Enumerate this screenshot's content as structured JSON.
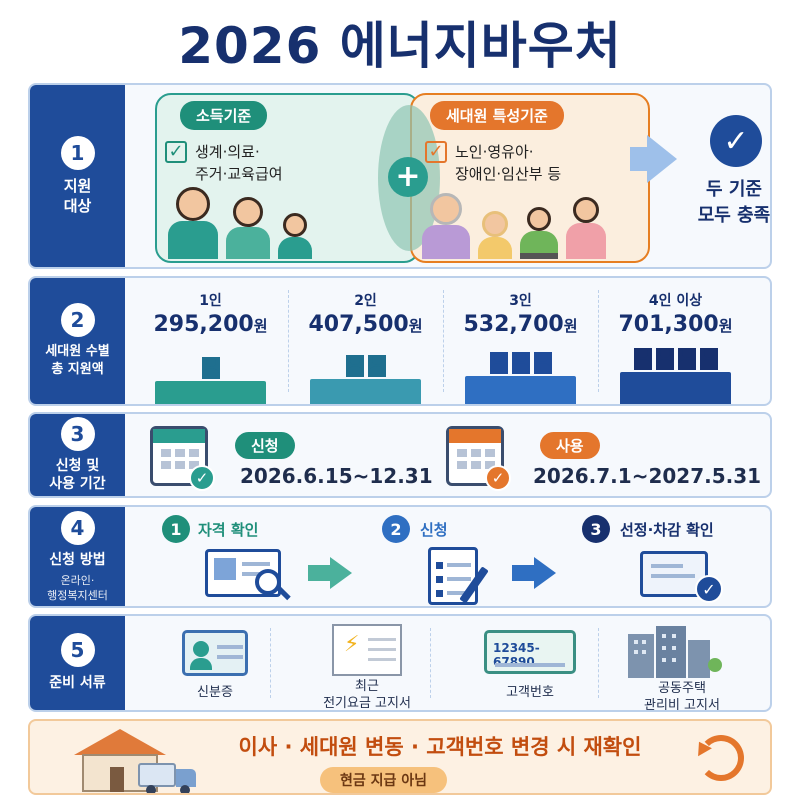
{
  "title": "2026 에너지바우처",
  "colors": {
    "primary": "#1f4c9a",
    "teal": "#1f8f7a",
    "orange": "#e4762c",
    "accent_text": "#c24d0f"
  },
  "eligibility": {
    "number": "1",
    "label_line1": "지원",
    "label_line2": "대상",
    "income": {
      "title": "소득기준",
      "line1": "생계·의료·",
      "line2": "주거·교육급여",
      "icon": "check-icon"
    },
    "household": {
      "title": "세대원 특성기준",
      "line1": "노인·영유아·",
      "line2": "장애인·임산부 등",
      "icon": "check-icon"
    },
    "plus": "+",
    "result_line1": "두 기준",
    "result_line2": "모두 충족"
  },
  "amounts": {
    "number": "2",
    "label_line1": "세대원 수별",
    "label_line2": "총 지원액",
    "unit": "원",
    "tiers": [
      {
        "size": "1인",
        "amount": "295,200",
        "people": 1,
        "value": 295200
      },
      {
        "size": "2인",
        "amount": "407,500",
        "people": 2,
        "value": 407500
      },
      {
        "size": "3인",
        "amount": "532,700",
        "people": 3,
        "value": 532700
      },
      {
        "size": "4인 이상",
        "amount": "701,300",
        "people": 4,
        "value": 701300
      }
    ]
  },
  "period": {
    "number": "3",
    "label_line1": "신청 및",
    "label_line2": "사용 기간",
    "apply": {
      "label": "신청",
      "dates": "2026.6.15~12.31"
    },
    "use": {
      "label": "사용",
      "dates": "2026.7.1~2027.5.31"
    }
  },
  "method": {
    "number": "4",
    "label": "신청 방법",
    "sub_line1": "온라인·",
    "sub_line2": "행정복지센터",
    "steps": [
      {
        "num": "1",
        "label": "자격 확인",
        "icon": "monitor-search-icon"
      },
      {
        "num": "2",
        "label": "신청",
        "icon": "clipboard-pen-icon"
      },
      {
        "num": "3",
        "label": "선정·차감 확인",
        "icon": "card-check-icon"
      }
    ]
  },
  "documents": {
    "number": "5",
    "label": "준비 서류",
    "items": [
      {
        "line1": "신분증",
        "line2": "",
        "icon": "id-card-icon"
      },
      {
        "line1": "최근",
        "line2": "전기요금 고지서",
        "icon": "electric-bill-icon"
      },
      {
        "line1": "고객번호",
        "line2": "",
        "icon": "customer-number-card-icon",
        "card_text": "12345-67890"
      },
      {
        "line1": "공동주택",
        "line2": "관리비 고지서",
        "icon": "apartment-icon"
      }
    ]
  },
  "banner": {
    "main": "이사 · 세대원 변동 · 고객번호 변경 시 재확인",
    "pill": "현금 지급 아님",
    "icon": "refresh-icon"
  }
}
